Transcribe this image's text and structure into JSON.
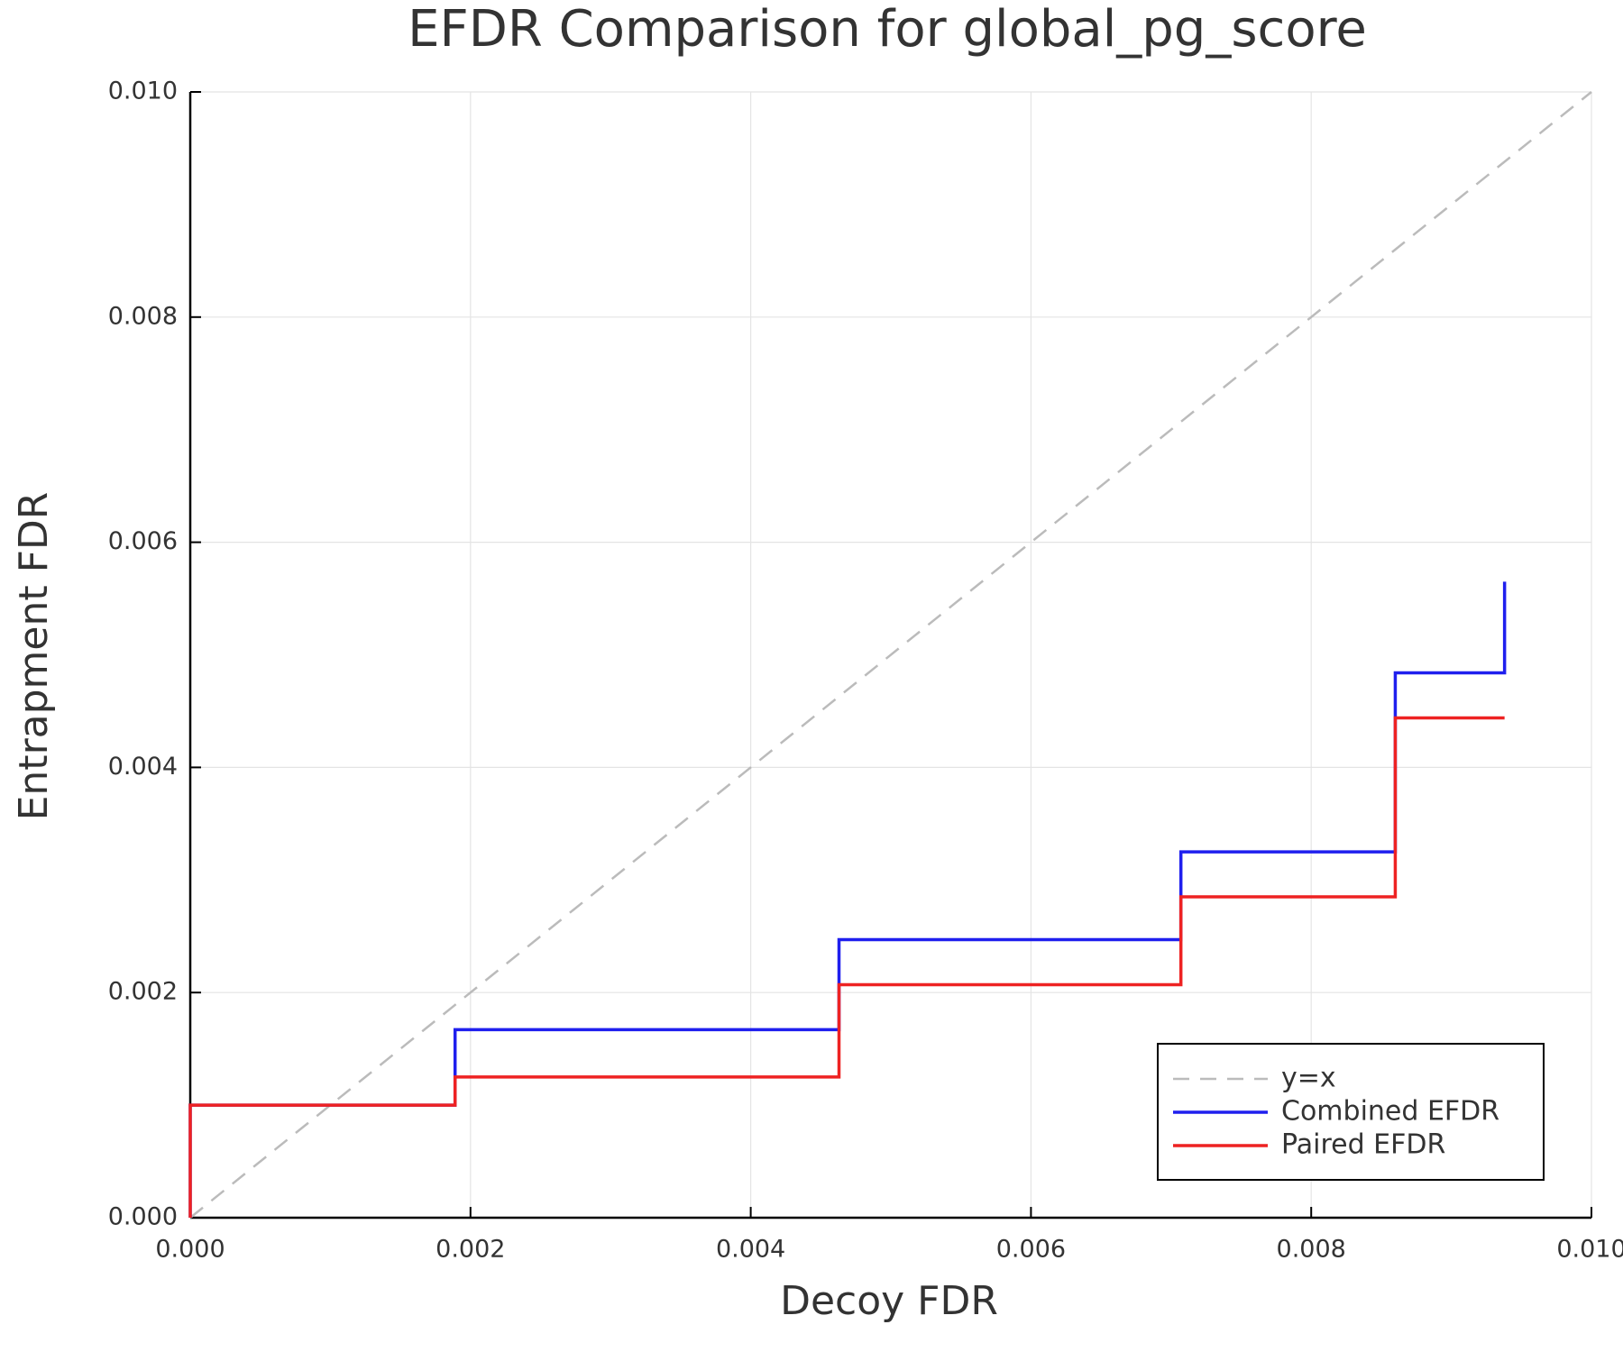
{
  "chart_data": {
    "type": "line",
    "title": "EFDR Comparison for global_pg_score",
    "x_label": "Decoy FDR",
    "y_label": "Entrapment FDR",
    "xlim": [
      0,
      0.01
    ],
    "ylim": [
      0,
      0.01
    ],
    "xticks": [
      {
        "value": 0,
        "label": "0.000"
      },
      {
        "value": 0.002,
        "label": "0.002"
      },
      {
        "value": 0.004,
        "label": "0.004"
      },
      {
        "value": 0.006,
        "label": "0.006"
      },
      {
        "value": 0.008,
        "label": "0.008"
      },
      {
        "value": 0.01,
        "label": "0.010"
      }
    ],
    "yticks": [
      {
        "value": 0,
        "label": "0.000"
      },
      {
        "value": 0.002,
        "label": "0.002"
      },
      {
        "value": 0.004,
        "label": "0.004"
      },
      {
        "value": 0.006,
        "label": "0.006"
      },
      {
        "value": 0.008,
        "label": "0.008"
      },
      {
        "value": 0.01,
        "label": "0.010"
      }
    ],
    "grid": true,
    "legend": "bottom right",
    "series": [
      {
        "name": "y=x",
        "color": "#bbbbbb",
        "dashed": true,
        "x": [
          0,
          0.01
        ],
        "values": [
          0,
          0.01
        ]
      },
      {
        "name": "Combined EFDR",
        "color": "#1f1fee",
        "dashed": false,
        "x": [
          0,
          0,
          0.00189,
          0.00189,
          0.00463,
          0.00463,
          0.00707,
          0.00707,
          0.0086,
          0.0086,
          0.00938,
          0.00938
        ],
        "values": [
          0,
          0.001,
          0.001,
          0.00167,
          0.00167,
          0.00247,
          0.00247,
          0.00325,
          0.00325,
          0.00484,
          0.00484,
          0.00565
        ]
      },
      {
        "name": "Paired EFDR",
        "color": "#ee2222",
        "dashed": false,
        "x": [
          0,
          0,
          0.00189,
          0.00189,
          0.00463,
          0.00463,
          0.00707,
          0.00707,
          0.0086,
          0.0086,
          0.00938
        ],
        "values": [
          0,
          0.001,
          0.001,
          0.00125,
          0.00125,
          0.00207,
          0.00207,
          0.00285,
          0.00285,
          0.00444,
          0.00444
        ]
      }
    ]
  }
}
